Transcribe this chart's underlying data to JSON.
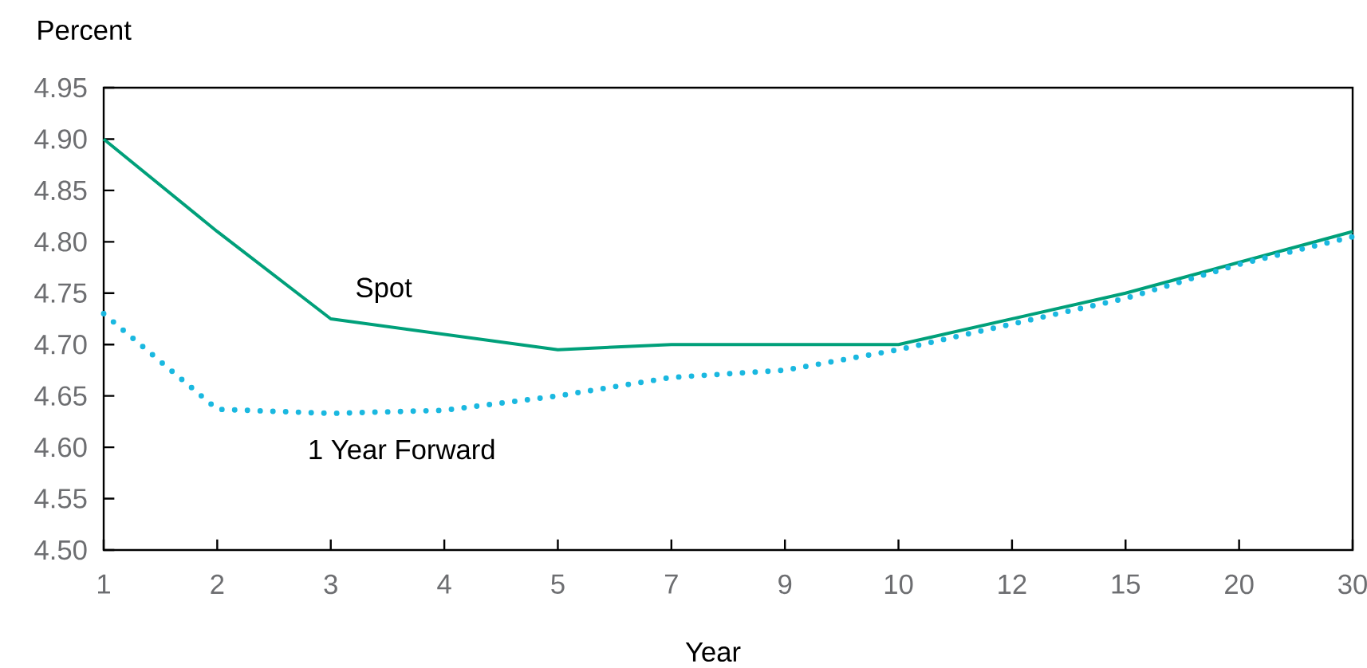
{
  "chart_data": {
    "type": "line",
    "xlabel": "Year",
    "ylabel": "Percent",
    "categories": [
      "1",
      "2",
      "3",
      "4",
      "5",
      "7",
      "9",
      "10",
      "12",
      "15",
      "20",
      "30"
    ],
    "series": [
      {
        "name": "Spot",
        "color": "#00a07a",
        "line_style": "solid",
        "values": [
          4.9,
          4.81,
          4.725,
          4.71,
          4.695,
          4.7,
          4.7,
          4.7,
          4.725,
          4.75,
          4.78,
          4.81
        ]
      },
      {
        "name": "1 Year Forward",
        "color": "#1ab8e0",
        "line_style": "dotted",
        "values": [
          4.73,
          4.637,
          4.633,
          4.636,
          4.65,
          4.668,
          4.675,
          4.695,
          4.72,
          4.745,
          4.778,
          4.805
        ]
      }
    ],
    "ylim": [
      4.5,
      4.95
    ],
    "yticks": [
      {
        "value": 4.5,
        "label": "4.50"
      },
      {
        "value": 4.55,
        "label": "4.55"
      },
      {
        "value": 4.6,
        "label": "4.60"
      },
      {
        "value": 4.65,
        "label": "4.65"
      },
      {
        "value": 4.7,
        "label": "4.70"
      },
      {
        "value": 4.75,
        "label": "4.75"
      },
      {
        "value": 4.8,
        "label": "4.80"
      },
      {
        "value": 4.85,
        "label": "4.85"
      },
      {
        "value": 4.9,
        "label": "4.90"
      },
      {
        "value": 4.95,
        "label": "4.95"
      }
    ],
    "grid": false,
    "legend": false,
    "marker": "none"
  }
}
